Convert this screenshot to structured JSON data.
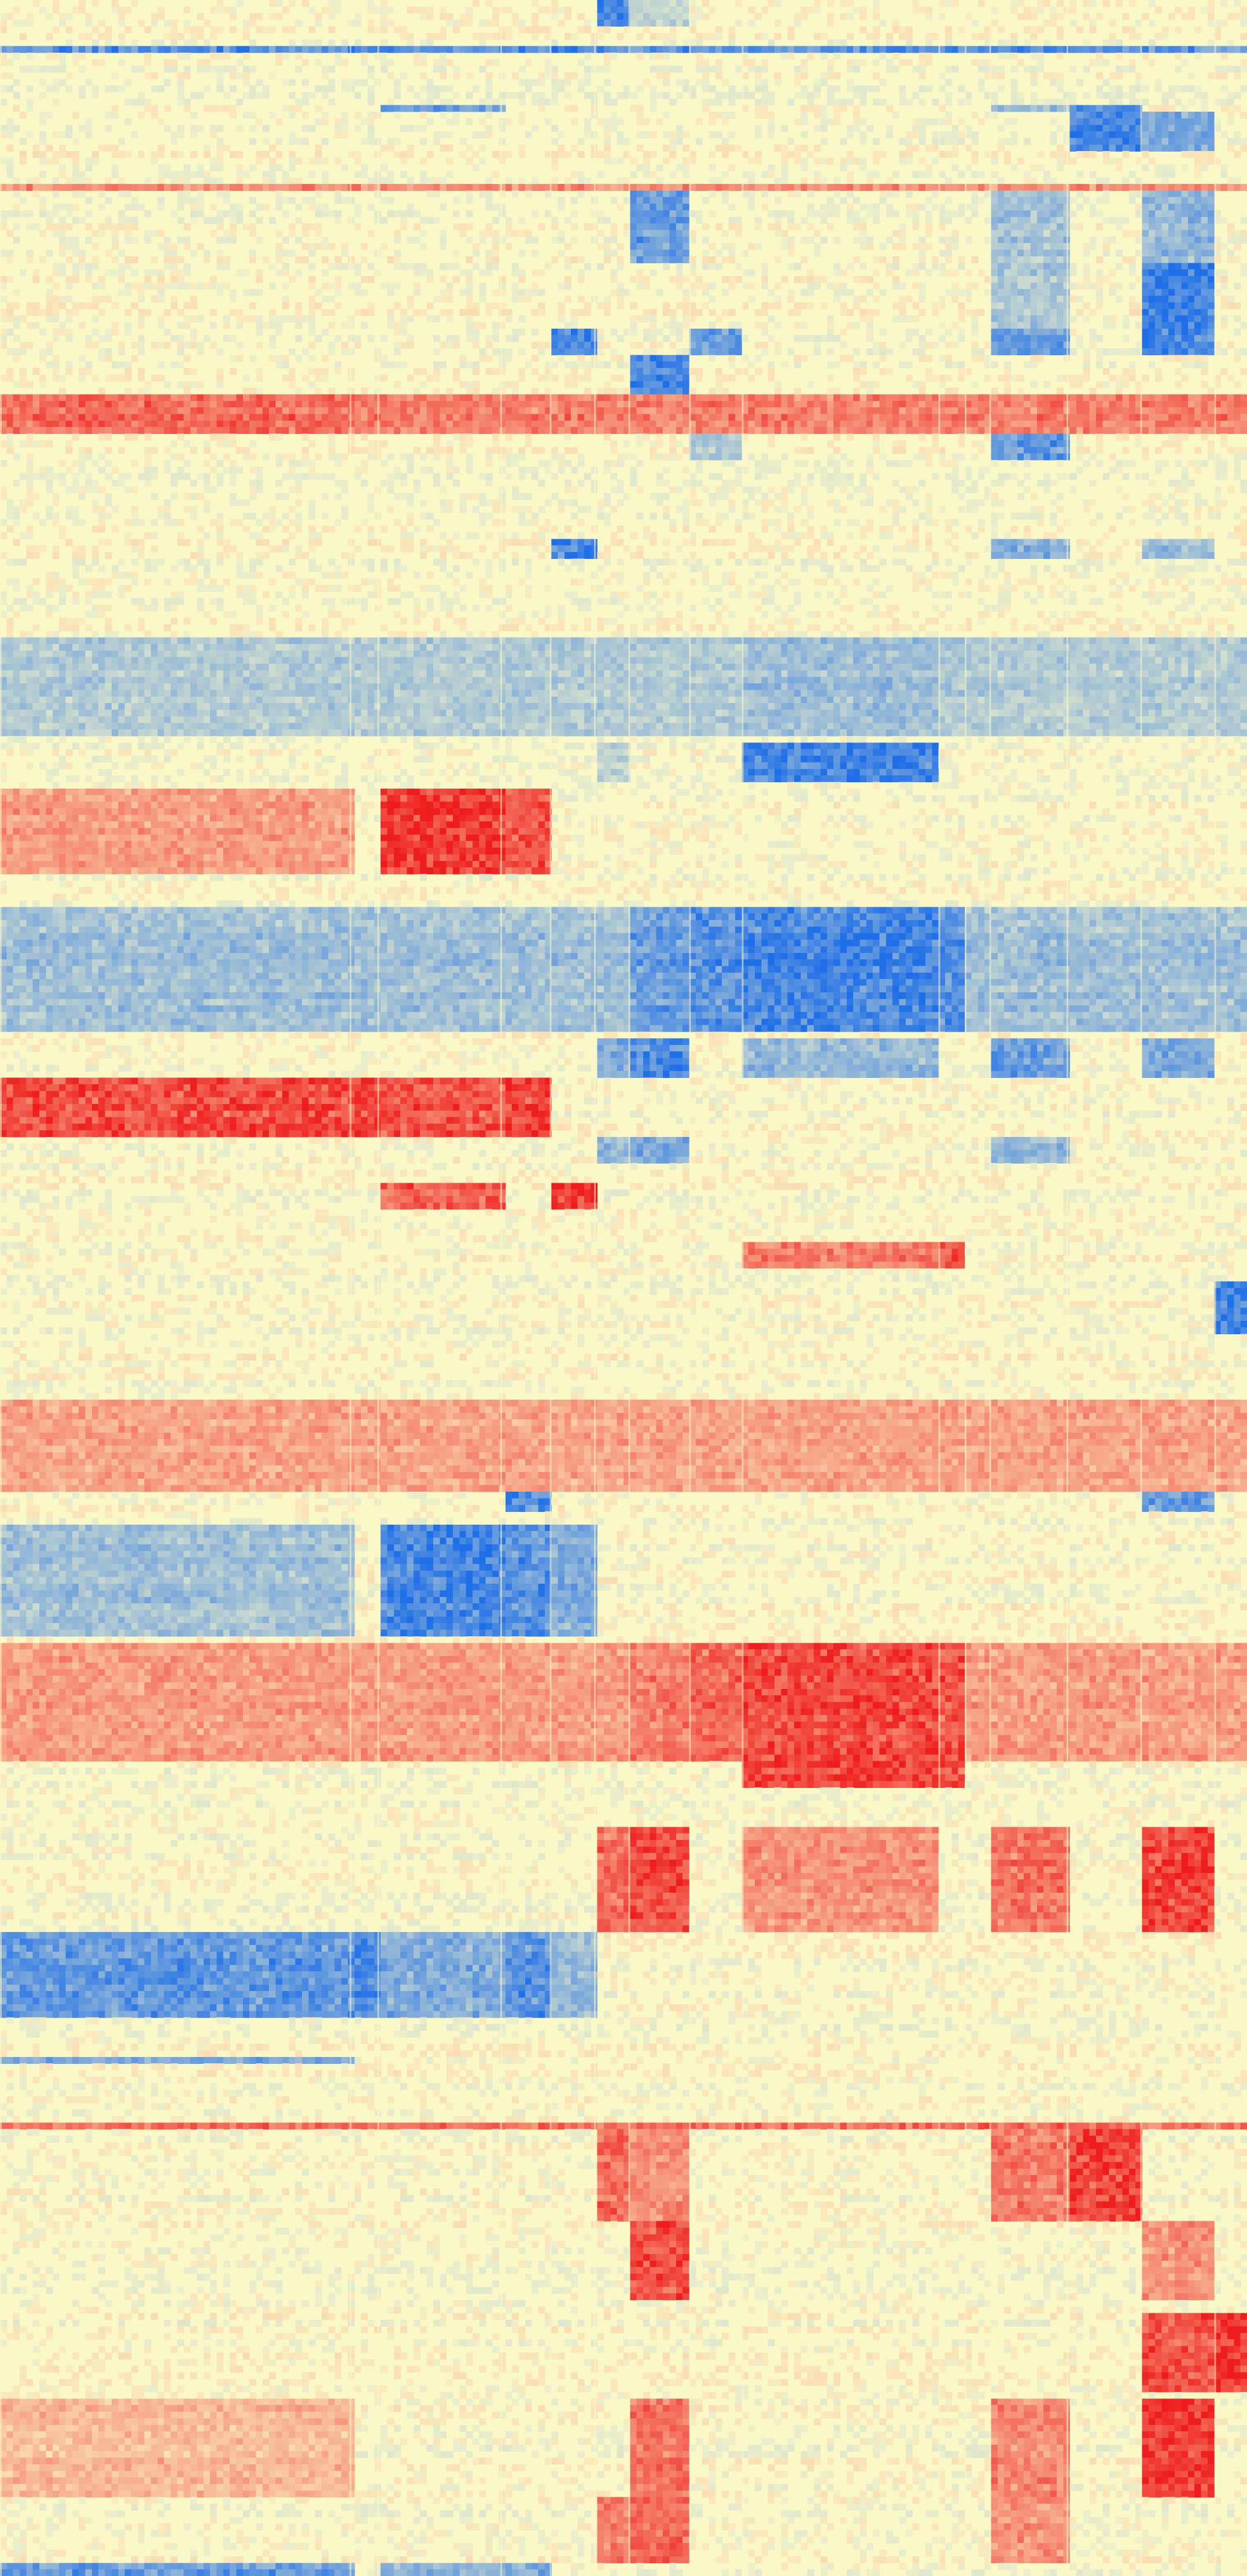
{
  "chart_data": {
    "type": "heatmap",
    "title": "",
    "xlabel": "",
    "ylabel": "",
    "grid": false,
    "legend": "none",
    "value_range": [
      -1,
      1
    ],
    "colors": {
      "low": "#1f6fe8",
      "mid": "#fbf8c8",
      "high": "#ee1c1c"
    },
    "n_columns": 760,
    "n_rows": 1568,
    "column_groups": [
      {
        "name": "g1",
        "start": 0,
        "end": 213
      },
      {
        "name": "g2",
        "start": 213,
        "end": 230
      },
      {
        "name": "g3",
        "start": 230,
        "end": 305
      },
      {
        "name": "g4",
        "start": 305,
        "end": 335
      },
      {
        "name": "g5",
        "start": 335,
        "end": 362
      },
      {
        "name": "g6",
        "start": 362,
        "end": 383
      },
      {
        "name": "g7",
        "start": 383,
        "end": 420
      },
      {
        "name": "g8",
        "start": 420,
        "end": 452
      },
      {
        "name": "g9",
        "start": 452,
        "end": 572
      },
      {
        "name": "g10",
        "start": 572,
        "end": 588
      },
      {
        "name": "g11",
        "start": 588,
        "end": 603
      },
      {
        "name": "g12",
        "start": 603,
        "end": 650
      },
      {
        "name": "g13",
        "start": 650,
        "end": 695
      },
      {
        "name": "g14",
        "start": 695,
        "end": 740
      },
      {
        "name": "g15",
        "start": 740,
        "end": 760
      }
    ],
    "row_blocks": [
      {
        "start": 0,
        "end": 15,
        "pattern": {
          "g6": -0.9,
          "g7": -0.3
        }
      },
      {
        "start": 28,
        "end": 32,
        "pattern": {
          "all": -0.8
        }
      },
      {
        "start": 62,
        "end": 66,
        "pattern": {
          "g3": -0.7,
          "g12": -0.5,
          "g13": -0.8
        }
      },
      {
        "start": 66,
        "end": 90,
        "pattern": {
          "g13": -0.9,
          "g14": -0.6
        }
      },
      {
        "start": 110,
        "end": 114,
        "pattern": {
          "all": 0.55
        }
      },
      {
        "start": 115,
        "end": 160,
        "pattern": {
          "g7": -0.7,
          "g12": -0.4,
          "g14": -0.5
        }
      },
      {
        "start": 160,
        "end": 200,
        "pattern": {
          "g14": -0.95,
          "g12": -0.4
        }
      },
      {
        "start": 200,
        "end": 215,
        "pattern": {
          "g5": -0.9,
          "g8": -0.7,
          "g12": -0.7,
          "g14": -0.85
        }
      },
      {
        "start": 215,
        "end": 237,
        "pattern": {
          "g7": -0.9
        }
      },
      {
        "start": 240,
        "end": 262,
        "pattern": {
          "all": 0.6,
          "g1": 0.7
        }
      },
      {
        "start": 262,
        "end": 280,
        "pattern": {
          "g12": -0.8,
          "g8": -0.4
        }
      },
      {
        "start": 325,
        "end": 338,
        "pattern": {
          "g5": -0.95,
          "g12": -0.6,
          "g14": -0.5
        }
      },
      {
        "start": 385,
        "end": 445,
        "pattern": {
          "all": -0.35,
          "g9": -0.45
        }
      },
      {
        "start": 450,
        "end": 475,
        "pattern": {
          "g9": -0.9,
          "g6": -0.3
        }
      },
      {
        "start": 480,
        "end": 530,
        "pattern": {
          "g1": 0.45,
          "g3": 0.95,
          "g4": 0.8
        }
      },
      {
        "start": 550,
        "end": 625,
        "pattern": {
          "all": -0.45,
          "g7": -0.7,
          "g8": -0.8,
          "g9": -0.9,
          "g10": -0.8
        }
      },
      {
        "start": 632,
        "end": 655,
        "pattern": {
          "g6": -0.6,
          "g7": -0.85,
          "g9": -0.5,
          "g12": -0.7,
          "g14": -0.6
        }
      },
      {
        "start": 655,
        "end": 690,
        "pattern": {
          "g1": 0.85,
          "g2": 0.9,
          "g3": 0.8,
          "g4": 0.9
        }
      },
      {
        "start": 690,
        "end": 705,
        "pattern": {
          "g6": -0.5,
          "g7": -0.6,
          "g12": -0.5
        }
      },
      {
        "start": 718,
        "end": 735,
        "pattern": {
          "g3": 0.75,
          "g5": 0.95
        }
      },
      {
        "start": 755,
        "end": 770,
        "pattern": {
          "g9": 0.6,
          "g10": 0.85
        }
      },
      {
        "start": 780,
        "end": 810,
        "pattern": {
          "g15": -0.9
        }
      },
      {
        "start": 852,
        "end": 905,
        "pattern": {
          "all": 0.4
        }
      },
      {
        "start": 905,
        "end": 918,
        "pattern": {
          "g4": -0.8,
          "g14": -0.7
        }
      },
      {
        "start": 928,
        "end": 995,
        "pattern": {
          "g1": -0.45,
          "g3": -0.9,
          "g4": -0.8,
          "g5": -0.6
        }
      },
      {
        "start": 1000,
        "end": 1070,
        "pattern": {
          "all": 0.45,
          "g7": 0.6,
          "g8": 0.7,
          "g9": 0.85,
          "g10": 0.8
        }
      },
      {
        "start": 1070,
        "end": 1085,
        "pattern": {
          "g9": 0.9,
          "g10": 0.85
        }
      },
      {
        "start": 1110,
        "end": 1175,
        "pattern": {
          "g6": 0.7,
          "g7": 0.85,
          "g9": 0.5,
          "g12": 0.65,
          "g14": 0.9
        }
      },
      {
        "start": 1175,
        "end": 1225,
        "pattern": {
          "g1": -0.75,
          "g2": -0.85,
          "g3": -0.6,
          "g4": -0.8,
          "g5": -0.5
        }
      },
      {
        "start": 1250,
        "end": 1256,
        "pattern": {
          "g1": -0.6
        }
      },
      {
        "start": 1290,
        "end": 1296,
        "pattern": {
          "all": 0.7
        }
      },
      {
        "start": 1296,
        "end": 1350,
        "pattern": {
          "g6": 0.7,
          "g7": 0.5,
          "g12": 0.6,
          "g13": 0.9
        }
      },
      {
        "start": 1350,
        "end": 1400,
        "pattern": {
          "g7": 0.85,
          "g14": 0.5
        }
      },
      {
        "start": 1405,
        "end": 1455,
        "pattern": {
          "g14": 0.8,
          "g15": 0.95
        }
      },
      {
        "start": 1460,
        "end": 1520,
        "pattern": {
          "g1": 0.3,
          "g7": 0.65,
          "g12": 0.55,
          "g14": 0.95
        }
      },
      {
        "start": 1520,
        "end": 1560,
        "pattern": {
          "g6": 0.6,
          "g7": 0.7,
          "g12": 0.5
        }
      },
      {
        "start": 1560,
        "end": 1568,
        "pattern": {
          "g1": -0.7,
          "g3": -0.5,
          "g4": -0.6
        }
      }
    ]
  }
}
